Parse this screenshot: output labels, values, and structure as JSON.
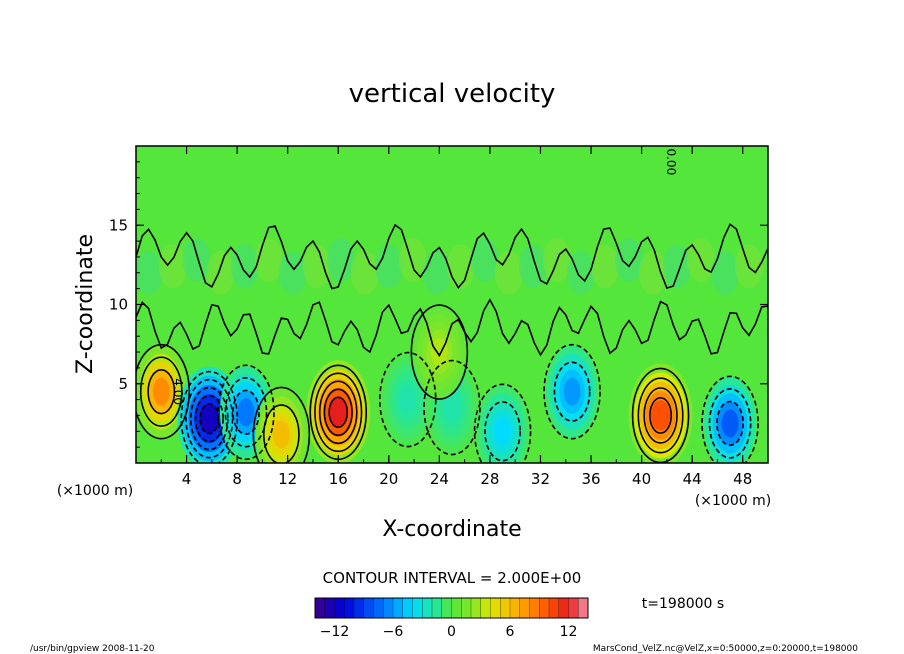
{
  "chart_data": {
    "type": "heatmap",
    "title": "vertical velocity",
    "xlabel": "X-coordinate",
    "ylabel": "Z-coordinate",
    "x_unit_label": "(×1000 m)",
    "x_unit_label_right": "(×1000 m)",
    "x_ticks": [
      "4",
      "8",
      "12",
      "16",
      "20",
      "24",
      "28",
      "32",
      "36",
      "40",
      "44",
      "48"
    ],
    "x_tick_values": [
      4,
      8,
      12,
      16,
      20,
      24,
      28,
      32,
      36,
      40,
      44,
      48
    ],
    "y_ticks": [
      "5",
      "10",
      "15"
    ],
    "y_tick_values": [
      5,
      10,
      15
    ],
    "xlim": [
      0,
      50
    ],
    "ylim": [
      0,
      20
    ],
    "contour_interval_text": "CONTOUR INTERVAL = 2.000E+00",
    "contour_labels": [
      {
        "text": "4.00",
        "x": 3,
        "z": 4.5
      },
      {
        "text": "0.00",
        "x": 42,
        "z": 19
      }
    ],
    "time_label": "t=198000 s",
    "colorbar": {
      "min": -14,
      "max": 14,
      "ticks": [
        "−12",
        "−6",
        "0",
        "6",
        "12"
      ],
      "tick_values": [
        -12,
        -6,
        0,
        6,
        12
      ]
    },
    "features": [
      {
        "x": 2,
        "z": 4.5,
        "value": 8
      },
      {
        "x": 5.8,
        "z": 2.8,
        "value": -12
      },
      {
        "x": 8.7,
        "z": 3.2,
        "value": -7
      },
      {
        "x": 11.5,
        "z": 1.8,
        "value": 6
      },
      {
        "x": 16,
        "z": 3.2,
        "value": 12
      },
      {
        "x": 21.5,
        "z": 4,
        "value": -2
      },
      {
        "x": 25,
        "z": 3.5,
        "value": -2
      },
      {
        "x": 29,
        "z": 2,
        "value": -4
      },
      {
        "x": 34.5,
        "z": 4.5,
        "value": -6
      },
      {
        "x": 41.5,
        "z": 3,
        "value": 10
      },
      {
        "x": 47,
        "z": 2.5,
        "value": -8
      },
      {
        "x": 24,
        "z": 7,
        "value": 3
      }
    ]
  },
  "footer": {
    "left": "/usr/bin/gpview  2008-11-20",
    "right": "MarsCond_VelZ.nc@VelZ,x=0:50000,z=0:20000,t=198000"
  }
}
